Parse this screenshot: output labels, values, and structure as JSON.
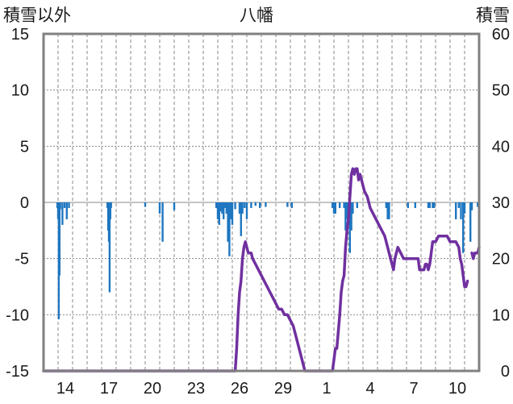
{
  "chart_data": {
    "type": "bar+line",
    "title": "八幡",
    "left_axis_title": "積雪以外",
    "right_axis_title": "積雪",
    "left_axis": {
      "min": -15,
      "max": 15,
      "ticks": [
        "15",
        "10",
        "5",
        "0",
        "-5",
        "-10",
        "-15"
      ]
    },
    "right_axis": {
      "min": 0,
      "max": 60,
      "ticks": [
        "60",
        "50",
        "40",
        "30",
        "20",
        "10",
        "0"
      ]
    },
    "x_range_days": [
      0,
      30
    ],
    "x_tick_labels": [
      {
        "day": 1.5,
        "label": "14"
      },
      {
        "day": 4.5,
        "label": "17"
      },
      {
        "day": 7.5,
        "label": "20"
      },
      {
        "day": 10.5,
        "label": "23"
      },
      {
        "day": 13.5,
        "label": "26"
      },
      {
        "day": 16.5,
        "label": "29"
      },
      {
        "day": 19.5,
        "label": "1"
      },
      {
        "day": 22.5,
        "label": "4"
      },
      {
        "day": 25.5,
        "label": "7"
      },
      {
        "day": 28.5,
        "label": "10"
      }
    ],
    "colors": {
      "bars": "#1f77c1",
      "snow_line": "#7030a0",
      "grid": "#888888",
      "frame": "#808080",
      "zero_line": "#b0b0b0"
    },
    "bars_left_axis": [
      {
        "day": 0.95,
        "v": -0.5
      },
      {
        "day": 1.0,
        "v": -1.5
      },
      {
        "day": 1.05,
        "v": -10.4
      },
      {
        "day": 1.1,
        "v": -6.5
      },
      {
        "day": 1.15,
        "v": -0.6
      },
      {
        "day": 1.3,
        "v": -2.0
      },
      {
        "day": 1.45,
        "v": -0.5
      },
      {
        "day": 1.6,
        "v": -1.5
      },
      {
        "day": 1.75,
        "v": -0.5
      },
      {
        "day": 4.4,
        "v": -0.5
      },
      {
        "day": 4.45,
        "v": -2.5
      },
      {
        "day": 4.5,
        "v": -3.5
      },
      {
        "day": 4.55,
        "v": -8.0
      },
      {
        "day": 4.6,
        "v": -1.5
      },
      {
        "day": 4.65,
        "v": -0.5
      },
      {
        "day": 7.0,
        "v": -0.4
      },
      {
        "day": 8.0,
        "v": -1.0
      },
      {
        "day": 8.2,
        "v": -3.5
      },
      {
        "day": 9.0,
        "v": -0.7
      },
      {
        "day": 11.9,
        "v": -0.5
      },
      {
        "day": 12.0,
        "v": -1.5
      },
      {
        "day": 12.1,
        "v": -2.0
      },
      {
        "day": 12.2,
        "v": -0.8
      },
      {
        "day": 12.3,
        "v": -1.0
      },
      {
        "day": 12.4,
        "v": -1.5
      },
      {
        "day": 12.5,
        "v": -0.5
      },
      {
        "day": 12.6,
        "v": -1.0
      },
      {
        "day": 12.7,
        "v": -3.5
      },
      {
        "day": 12.8,
        "v": -4.8
      },
      {
        "day": 12.9,
        "v": -1.5
      },
      {
        "day": 13.0,
        "v": -2.0
      },
      {
        "day": 13.2,
        "v": -0.6
      },
      {
        "day": 13.5,
        "v": -1.0
      },
      {
        "day": 13.6,
        "v": -3.0
      },
      {
        "day": 13.7,
        "v": -1.0
      },
      {
        "day": 13.85,
        "v": -0.5
      },
      {
        "day": 14.0,
        "v": -1.5
      },
      {
        "day": 14.3,
        "v": -0.5
      },
      {
        "day": 14.6,
        "v": -0.3
      },
      {
        "day": 14.9,
        "v": -0.5
      },
      {
        "day": 15.3,
        "v": -0.4
      },
      {
        "day": 16.8,
        "v": -0.4
      },
      {
        "day": 17.1,
        "v": -0.5
      },
      {
        "day": 19.9,
        "v": -0.5
      },
      {
        "day": 20.0,
        "v": -1.0
      },
      {
        "day": 20.1,
        "v": -1.0
      },
      {
        "day": 20.4,
        "v": -0.5
      },
      {
        "day": 20.7,
        "v": -0.5
      },
      {
        "day": 20.8,
        "v": -2.5
      },
      {
        "day": 20.9,
        "v": -1.5
      },
      {
        "day": 21.0,
        "v": -2.0
      },
      {
        "day": 21.1,
        "v": -4.5
      },
      {
        "day": 21.2,
        "v": -2.5
      },
      {
        "day": 21.3,
        "v": -1.0
      },
      {
        "day": 21.6,
        "v": -0.5
      },
      {
        "day": 23.6,
        "v": -0.5
      },
      {
        "day": 23.7,
        "v": -1.5
      },
      {
        "day": 23.8,
        "v": -1.5
      },
      {
        "day": 25.1,
        "v": -0.5
      },
      {
        "day": 25.6,
        "v": -0.5
      },
      {
        "day": 26.5,
        "v": -0.5
      },
      {
        "day": 26.6,
        "v": -0.5
      },
      {
        "day": 26.8,
        "v": -0.5
      },
      {
        "day": 26.9,
        "v": -0.5
      },
      {
        "day": 28.4,
        "v": -1.5
      },
      {
        "day": 28.6,
        "v": -0.5
      },
      {
        "day": 28.75,
        "v": -1.5
      },
      {
        "day": 28.9,
        "v": -4.5
      },
      {
        "day": 29.0,
        "v": -1.0
      },
      {
        "day": 29.4,
        "v": -3.5
      },
      {
        "day": 29.5,
        "v": -0.7
      },
      {
        "day": 29.9,
        "v": -0.4
      }
    ],
    "snow_depth_right_axis": [
      [
        [
          0,
          0
        ],
        [
          13.2,
          0
        ],
        [
          13.3,
          4
        ],
        [
          13.4,
          10
        ],
        [
          13.5,
          14
        ],
        [
          13.6,
          16
        ],
        [
          13.7,
          20
        ],
        [
          13.8,
          22
        ],
        [
          13.9,
          23
        ],
        [
          14.0,
          22
        ],
        [
          14.1,
          21
        ],
        [
          14.3,
          21
        ],
        [
          14.4,
          20
        ],
        [
          14.6,
          19
        ],
        [
          14.8,
          18
        ],
        [
          15.0,
          17
        ],
        [
          15.2,
          16
        ],
        [
          15.4,
          15
        ],
        [
          15.6,
          14
        ],
        [
          15.8,
          13
        ],
        [
          16.0,
          12
        ],
        [
          16.2,
          11
        ],
        [
          16.4,
          11
        ],
        [
          16.6,
          10
        ],
        [
          16.8,
          10
        ],
        [
          17.0,
          9
        ],
        [
          17.2,
          8
        ],
        [
          17.4,
          6
        ],
        [
          17.6,
          4
        ],
        [
          17.8,
          2
        ],
        [
          17.9,
          1
        ],
        [
          18.0,
          0
        ],
        [
          19.9,
          0
        ],
        [
          20.0,
          2
        ],
        [
          20.1,
          4
        ],
        [
          20.2,
          4
        ],
        [
          20.3,
          7
        ],
        [
          20.4,
          10
        ],
        [
          20.5,
          14
        ],
        [
          20.6,
          16
        ],
        [
          20.7,
          17
        ],
        [
          20.8,
          22
        ],
        [
          20.9,
          25
        ],
        [
          21.0,
          27
        ],
        [
          21.1,
          31
        ],
        [
          21.2,
          35
        ],
        [
          21.3,
          36
        ],
        [
          21.4,
          35
        ],
        [
          21.5,
          36
        ],
        [
          21.6,
          36
        ],
        [
          21.7,
          34
        ],
        [
          21.8,
          35
        ],
        [
          21.9,
          34
        ],
        [
          22.0,
          33
        ],
        [
          22.1,
          32
        ],
        [
          22.3,
          31
        ],
        [
          22.5,
          29
        ],
        [
          22.7,
          28
        ],
        [
          22.9,
          27
        ],
        [
          23.1,
          26
        ],
        [
          23.3,
          25
        ],
        [
          23.5,
          24
        ],
        [
          23.6,
          23
        ],
        [
          23.7,
          22
        ],
        [
          23.8,
          21
        ],
        [
          23.9,
          20
        ],
        [
          24.0,
          19
        ],
        [
          24.1,
          18
        ],
        [
          24.2,
          20
        ],
        [
          24.3,
          21
        ],
        [
          24.4,
          22
        ],
        [
          24.6,
          21
        ],
        [
          24.8,
          20
        ],
        [
          25.0,
          20
        ],
        [
          25.2,
          20
        ],
        [
          25.4,
          20
        ],
        [
          25.6,
          20
        ],
        [
          25.8,
          20
        ],
        [
          25.9,
          18
        ],
        [
          26.0,
          18
        ],
        [
          26.2,
          18
        ],
        [
          26.3,
          19
        ],
        [
          26.4,
          19
        ],
        [
          26.5,
          18
        ],
        [
          26.6,
          19
        ],
        [
          26.8,
          23
        ],
        [
          27.0,
          23
        ],
        [
          27.2,
          24
        ],
        [
          27.4,
          24
        ],
        [
          27.6,
          24
        ],
        [
          27.8,
          24
        ],
        [
          28.0,
          23
        ],
        [
          28.2,
          23
        ],
        [
          28.4,
          23
        ],
        [
          28.6,
          22
        ],
        [
          28.7,
          20
        ],
        [
          28.8,
          19
        ],
        [
          28.9,
          17
        ],
        [
          29.0,
          15
        ],
        [
          29.1,
          15
        ],
        [
          29.2,
          16
        ]
      ],
      [
        [
          29.5,
          21
        ],
        [
          29.6,
          20
        ],
        [
          29.7,
          21
        ],
        [
          29.8,
          21
        ],
        [
          29.9,
          21
        ],
        [
          30.0,
          22
        ]
      ]
    ]
  }
}
